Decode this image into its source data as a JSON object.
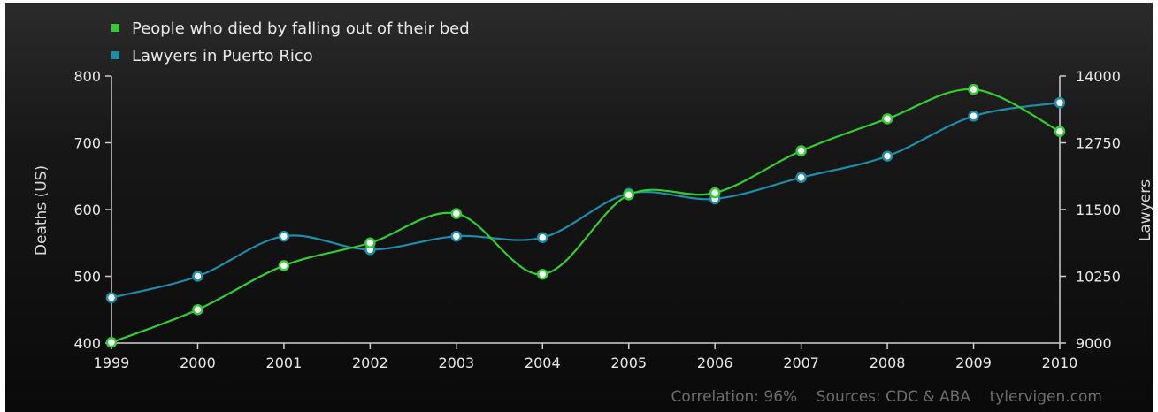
{
  "chart_data": {
    "type": "line",
    "x": [
      "1999",
      "2000",
      "2001",
      "2002",
      "2003",
      "2004",
      "2005",
      "2006",
      "2007",
      "2008",
      "2009",
      "2010"
    ],
    "series": [
      {
        "name": "People who died by falling out of their bed",
        "axis": "left",
        "color": "#33cc33",
        "values": [
          401,
          450,
          516,
          550,
          594,
          503,
          622,
          625,
          688,
          736,
          780,
          717
        ]
      },
      {
        "name": "Lawyers in Puerto Rico",
        "axis": "right",
        "color": "#1d8ea8",
        "values": [
          9850,
          10250,
          11000,
          10750,
          11000,
          10975,
          11800,
          11700,
          12100,
          12500,
          13250,
          13500
        ]
      }
    ],
    "ylabel_left": "Deaths (US)",
    "ylabel_right": "Lawyers",
    "ylim_left": [
      400,
      800
    ],
    "yticks_left": [
      "400",
      "500",
      "600",
      "700",
      "800"
    ],
    "ylim_right": [
      9000,
      14000
    ],
    "yticks_right": [
      "9000",
      "10250",
      "11500",
      "12750",
      "14000"
    ],
    "legend_position": "top-left",
    "footer": "Correlation: 96%    Sources: CDC & ABA    tylervigen.com"
  }
}
